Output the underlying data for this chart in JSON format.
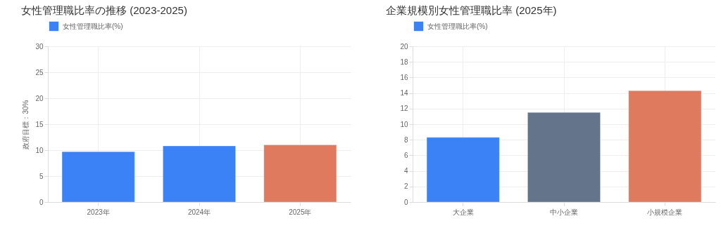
{
  "chart_data": [
    {
      "type": "bar",
      "title": "女性管理職比率の推移 (2023-2025)",
      "ylabel": "政府目標：30%",
      "categories": [
        "2023年",
        "2024年",
        "2025年"
      ],
      "series": [
        {
          "name": "女性管理職比率(%)",
          "values": [
            9.7,
            10.8,
            11.0
          ]
        }
      ],
      "colors": [
        "#3b82f6",
        "#3b82f6",
        "#e07a5f"
      ],
      "ylim": [
        0,
        30
      ],
      "yticks": [
        0,
        5,
        10,
        15,
        20,
        25,
        30
      ],
      "grid": true,
      "legend": "top"
    },
    {
      "type": "bar",
      "title": "企業規模別女性管理職比率 (2025年)",
      "categories": [
        "大企業",
        "中小企業",
        "小規模企業"
      ],
      "series": [
        {
          "name": "女性管理職比率(%)",
          "values": [
            8.3,
            11.5,
            14.3
          ]
        }
      ],
      "colors": [
        "#3b82f6",
        "#64748b",
        "#e07a5f"
      ],
      "ylim": [
        0,
        20
      ],
      "yticks": [
        0,
        2,
        4,
        6,
        8,
        10,
        12,
        14,
        16,
        18,
        20
      ],
      "grid": true,
      "legend": "top"
    }
  ]
}
